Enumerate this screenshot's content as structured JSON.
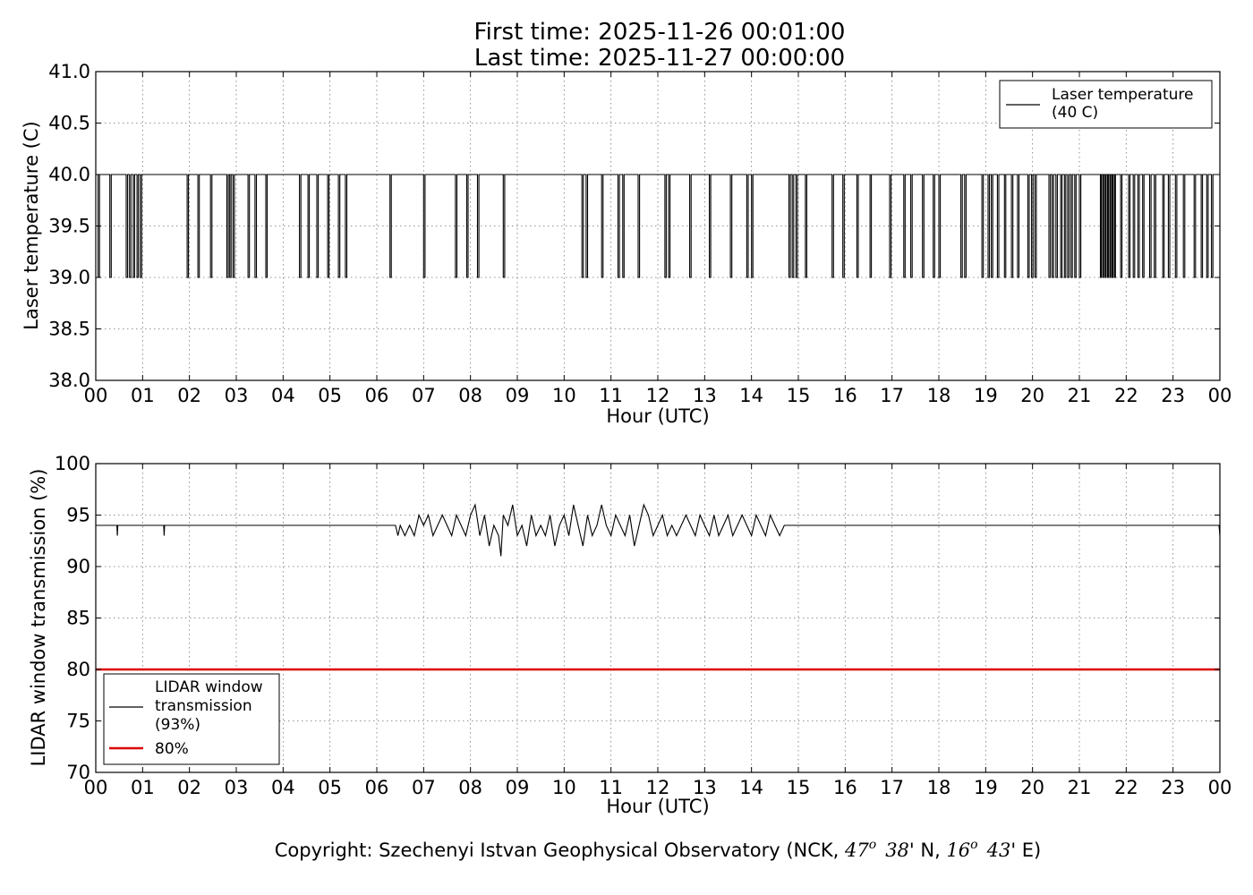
{
  "title": {
    "line1": "First time: 2025-11-26 00:01:00",
    "line2": "Last time: 2025-11-27 00:00:00"
  },
  "copyright": {
    "prefix": "Copyright: Szechenyi Istvan Geophysical Observatory (NCK, ",
    "lat_deg": "47",
    "lat_min": "38",
    "lat_dir": "' N, ",
    "lon_deg": "16",
    "lon_min": "43",
    "lon_dir": "' E)",
    "deg_sup": "o"
  },
  "chart_data": [
    {
      "type": "line",
      "xlabel": "Hour (UTC)",
      "ylabel": "Laser temperature (C)",
      "xlim": [
        0,
        24
      ],
      "ylim": [
        38.0,
        41.0
      ],
      "x_ticks": [
        0,
        1,
        2,
        3,
        4,
        5,
        6,
        7,
        8,
        9,
        10,
        11,
        12,
        13,
        14,
        15,
        16,
        17,
        18,
        19,
        20,
        21,
        22,
        23,
        24
      ],
      "x_tick_labels": [
        "00",
        "01",
        "02",
        "03",
        "04",
        "05",
        "06",
        "07",
        "08",
        "09",
        "10",
        "11",
        "12",
        "13",
        "14",
        "15",
        "16",
        "17",
        "18",
        "19",
        "20",
        "21",
        "22",
        "23",
        "00"
      ],
      "y_ticks": [
        38.0,
        38.5,
        39.0,
        39.5,
        40.0,
        40.5,
        41.0
      ],
      "y_tick_labels": [
        "38.0",
        "38.5",
        "39.0",
        "39.5",
        "40.0",
        "40.5",
        "41.0"
      ],
      "grid": true,
      "legend_position": "top-right",
      "series": [
        {
          "name": "Laser temperature\n(40 C)",
          "legend_lines": [
            "Laser temperature",
            "(40 C)"
          ],
          "color": "#000000",
          "baseline": 40.0,
          "low_value": 39.0,
          "dips_to_39": [
            [
              0.05,
              0.08
            ],
            [
              0.3,
              0.33
            ],
            [
              0.65,
              0.68
            ],
            [
              0.72,
              0.75
            ],
            [
              0.8,
              0.83
            ],
            [
              0.88,
              0.91
            ],
            [
              0.95,
              0.98
            ],
            [
              1.95,
              1.98
            ],
            [
              2.18,
              2.21
            ],
            [
              2.45,
              2.48
            ],
            [
              2.8,
              2.83
            ],
            [
              2.86,
              2.89
            ],
            [
              2.93,
              2.96
            ],
            [
              3.25,
              3.28
            ],
            [
              3.4,
              3.43
            ],
            [
              3.63,
              3.66
            ],
            [
              4.35,
              4.38
            ],
            [
              4.53,
              4.56
            ],
            [
              4.72,
              4.75
            ],
            [
              4.95,
              4.98
            ],
            [
              5.18,
              5.21
            ],
            [
              5.33,
              5.36
            ],
            [
              6.28,
              6.31
            ],
            [
              7.0,
              7.03
            ],
            [
              7.68,
              7.71
            ],
            [
              7.92,
              7.95
            ],
            [
              8.15,
              8.18
            ],
            [
              8.7,
              8.73
            ],
            [
              10.38,
              10.41
            ],
            [
              10.47,
              10.5
            ],
            [
              10.8,
              10.83
            ],
            [
              11.15,
              11.18
            ],
            [
              11.25,
              11.28
            ],
            [
              11.58,
              11.61
            ],
            [
              12.15,
              12.18
            ],
            [
              12.23,
              12.26
            ],
            [
              12.68,
              12.71
            ],
            [
              13.1,
              13.13
            ],
            [
              13.55,
              13.58
            ],
            [
              13.9,
              13.93
            ],
            [
              14.0,
              14.03
            ],
            [
              14.8,
              14.83
            ],
            [
              14.87,
              14.9
            ],
            [
              14.95,
              14.98
            ],
            [
              15.15,
              15.18
            ],
            [
              15.72,
              15.75
            ],
            [
              15.95,
              15.98
            ],
            [
              16.25,
              16.28
            ],
            [
              16.53,
              16.56
            ],
            [
              16.95,
              16.98
            ],
            [
              17.25,
              17.28
            ],
            [
              17.4,
              17.43
            ],
            [
              17.65,
              17.68
            ],
            [
              17.88,
              17.91
            ],
            [
              18.0,
              18.03
            ],
            [
              18.47,
              18.5
            ],
            [
              18.55,
              18.58
            ],
            [
              18.92,
              18.95
            ],
            [
              19.05,
              19.08
            ],
            [
              19.12,
              19.15
            ],
            [
              19.25,
              19.28
            ],
            [
              19.4,
              19.43
            ],
            [
              19.55,
              19.58
            ],
            [
              19.68,
              19.71
            ],
            [
              19.9,
              19.93
            ],
            [
              19.98,
              20.01
            ],
            [
              20.05,
              20.08
            ],
            [
              20.35,
              20.38
            ],
            [
              20.42,
              20.45
            ],
            [
              20.5,
              20.53
            ],
            [
              20.6,
              20.63
            ],
            [
              20.68,
              20.71
            ],
            [
              20.75,
              20.78
            ],
            [
              20.82,
              20.85
            ],
            [
              20.9,
              20.93
            ],
            [
              21.0,
              21.03
            ],
            [
              21.45,
              21.47
            ],
            [
              21.5,
              21.52
            ],
            [
              21.55,
              21.57
            ],
            [
              21.6,
              21.62
            ],
            [
              21.65,
              21.67
            ],
            [
              21.7,
              21.72
            ],
            [
              21.75,
              21.77
            ],
            [
              21.88,
              21.91
            ],
            [
              22.05,
              22.08
            ],
            [
              22.15,
              22.18
            ],
            [
              22.25,
              22.28
            ],
            [
              22.35,
              22.38
            ],
            [
              22.5,
              22.53
            ],
            [
              22.6,
              22.63
            ],
            [
              22.78,
              22.81
            ],
            [
              22.9,
              22.93
            ],
            [
              23.05,
              23.08
            ],
            [
              23.22,
              23.25
            ],
            [
              23.45,
              23.48
            ],
            [
              23.6,
              23.63
            ],
            [
              23.72,
              23.75
            ],
            [
              23.82,
              23.85
            ]
          ]
        }
      ]
    },
    {
      "type": "line",
      "xlabel": "Hour (UTC)",
      "ylabel": "LIDAR window transmission (%)",
      "xlim": [
        0,
        24
      ],
      "ylim": [
        70,
        100
      ],
      "x_ticks": [
        0,
        1,
        2,
        3,
        4,
        5,
        6,
        7,
        8,
        9,
        10,
        11,
        12,
        13,
        14,
        15,
        16,
        17,
        18,
        19,
        20,
        21,
        22,
        23,
        24
      ],
      "x_tick_labels": [
        "00",
        "01",
        "02",
        "03",
        "04",
        "05",
        "06",
        "07",
        "08",
        "09",
        "10",
        "11",
        "12",
        "13",
        "14",
        "15",
        "16",
        "17",
        "18",
        "19",
        "20",
        "21",
        "22",
        "23",
        "00"
      ],
      "y_ticks": [
        70,
        75,
        80,
        85,
        90,
        95,
        100
      ],
      "y_tick_labels": [
        "70",
        "75",
        "80",
        "85",
        "90",
        "95",
        "100"
      ],
      "grid": true,
      "legend_position": "lower-left",
      "series": [
        {
          "name": "LIDAR window\ntransmission\n(93%)",
          "legend_lines": [
            "LIDAR window",
            "transmission",
            "(93%)"
          ],
          "color": "#000000",
          "baseline": 94,
          "noisy_range": [
            6.4,
            14.8
          ],
          "x": [
            0.0,
            0.45,
            0.46,
            0.47,
            1.45,
            1.46,
            1.47,
            6.4,
            6.45,
            6.5,
            6.6,
            6.7,
            6.8,
            6.9,
            7.0,
            7.1,
            7.2,
            7.3,
            7.4,
            7.5,
            7.6,
            7.7,
            7.8,
            7.9,
            8.0,
            8.1,
            8.2,
            8.3,
            8.4,
            8.5,
            8.6,
            8.65,
            8.7,
            8.8,
            8.9,
            9.0,
            9.1,
            9.2,
            9.3,
            9.4,
            9.5,
            9.6,
            9.7,
            9.8,
            9.9,
            10.0,
            10.1,
            10.2,
            10.3,
            10.4,
            10.5,
            10.6,
            10.7,
            10.8,
            10.9,
            11.0,
            11.1,
            11.2,
            11.3,
            11.4,
            11.5,
            11.6,
            11.7,
            11.8,
            11.9,
            12.0,
            12.1,
            12.2,
            12.3,
            12.4,
            12.5,
            12.6,
            12.7,
            12.8,
            12.9,
            13.0,
            13.1,
            13.2,
            13.3,
            13.4,
            13.5,
            13.6,
            13.7,
            13.8,
            13.9,
            14.0,
            14.1,
            14.2,
            14.3,
            14.4,
            14.5,
            14.6,
            14.7,
            14.8,
            15.0,
            23.98,
            24.0
          ],
          "y": [
            94,
            94,
            93,
            94,
            94,
            93,
            94,
            94,
            93,
            94,
            93,
            94,
            93,
            95,
            94,
            95,
            93,
            94,
            95,
            94,
            93,
            95,
            94,
            93,
            95,
            96,
            93,
            95,
            92,
            94,
            93,
            91,
            95,
            94,
            96,
            93,
            94,
            92,
            95,
            93,
            94,
            93,
            95,
            92,
            94,
            95,
            93,
            96,
            94,
            92,
            95,
            93,
            94,
            96,
            94,
            93,
            95,
            94,
            93,
            95,
            92,
            94,
            96,
            95,
            93,
            94,
            95,
            93,
            94,
            93,
            94,
            95,
            94,
            93,
            95,
            94,
            93,
            95,
            93,
            94,
            95,
            93,
            94,
            95,
            94,
            93,
            95,
            94,
            93,
            95,
            94,
            93,
            94,
            94,
            94,
            94,
            93
          ]
        },
        {
          "name": "80%",
          "legend_lines": [
            "80%"
          ],
          "color": "#dd0000",
          "x": [
            0,
            24
          ],
          "y": [
            80,
            80
          ]
        }
      ]
    }
  ]
}
